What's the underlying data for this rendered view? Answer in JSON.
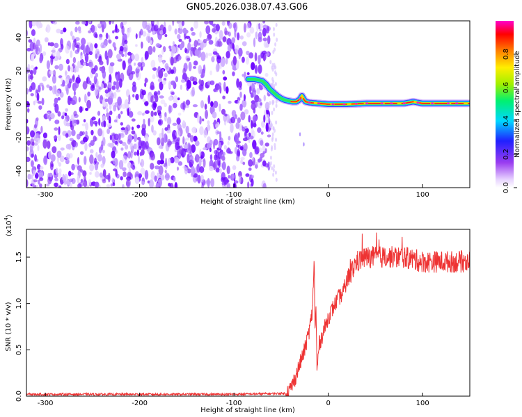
{
  "title": "GN05.2026.038.07.43.G06",
  "chart_data": [
    {
      "type": "heatmap",
      "xlabel": "Height of straight line (km)",
      "ylabel": "Frequency (Hz)",
      "xlim": [
        -320,
        150
      ],
      "ylim": [
        -50,
        50
      ],
      "xticks": [
        -300,
        -200,
        -100,
        0,
        100
      ],
      "yticks": [
        -40,
        -20,
        0,
        20,
        40
      ],
      "colorbar": {
        "label": "Normalized spectral amplitude",
        "range": [
          0,
          1
        ],
        "ticks": [
          0.0,
          0.2,
          0.4,
          0.6,
          0.8
        ]
      },
      "noise_region_x": [
        -320,
        -62
      ],
      "signal_track": {
        "x": [
          -85,
          -78,
          -70,
          -66,
          -62,
          -58,
          -54,
          -50,
          -46,
          -42,
          -38,
          -34,
          -30,
          -28,
          -26,
          -24,
          -20,
          -10,
          0,
          20,
          40,
          60,
          80,
          90,
          100,
          120,
          150
        ],
        "y": [
          15,
          15,
          14,
          12,
          9,
          7,
          5,
          3.5,
          2.5,
          2,
          1.5,
          1.5,
          3,
          5,
          3,
          1.5,
          1,
          0.5,
          0,
          0,
          0.5,
          0.5,
          0.5,
          1.5,
          0.5,
          0.5,
          0.5
        ]
      }
    },
    {
      "type": "line",
      "xlabel": "Height of straight line (km)",
      "ylabel": "SNR (10 * v/v)",
      "y_multiplier_label": "(x10",
      "y_multiplier_exp": "4",
      "xlim": [
        -320,
        150
      ],
      "ylim": [
        0,
        1.8
      ],
      "xticks": [
        -300,
        -200,
        -100,
        0,
        100
      ],
      "yticks": [
        "0.0",
        "0.5",
        "1.0",
        "1.5"
      ],
      "line_color": "#ee3333",
      "series": [
        {
          "x": [
            -320,
            -200,
            -100,
            -45,
            -40,
            -35,
            -30,
            -25,
            -20,
            -17,
            -15,
            -14,
            -13,
            -12,
            -10,
            -5,
            0,
            5,
            10,
            15,
            20,
            25,
            30,
            40,
            60,
            80,
            100,
            120,
            150
          ],
          "y": [
            0.02,
            0.02,
            0.02,
            0.03,
            0.08,
            0.2,
            0.35,
            0.5,
            0.72,
            0.9,
            1.48,
            0.7,
            0.95,
            0.25,
            0.55,
            0.7,
            0.85,
            0.95,
            1.05,
            1.1,
            1.25,
            1.35,
            1.45,
            1.5,
            1.5,
            1.5,
            1.45,
            1.45,
            1.45
          ]
        }
      ]
    }
  ]
}
